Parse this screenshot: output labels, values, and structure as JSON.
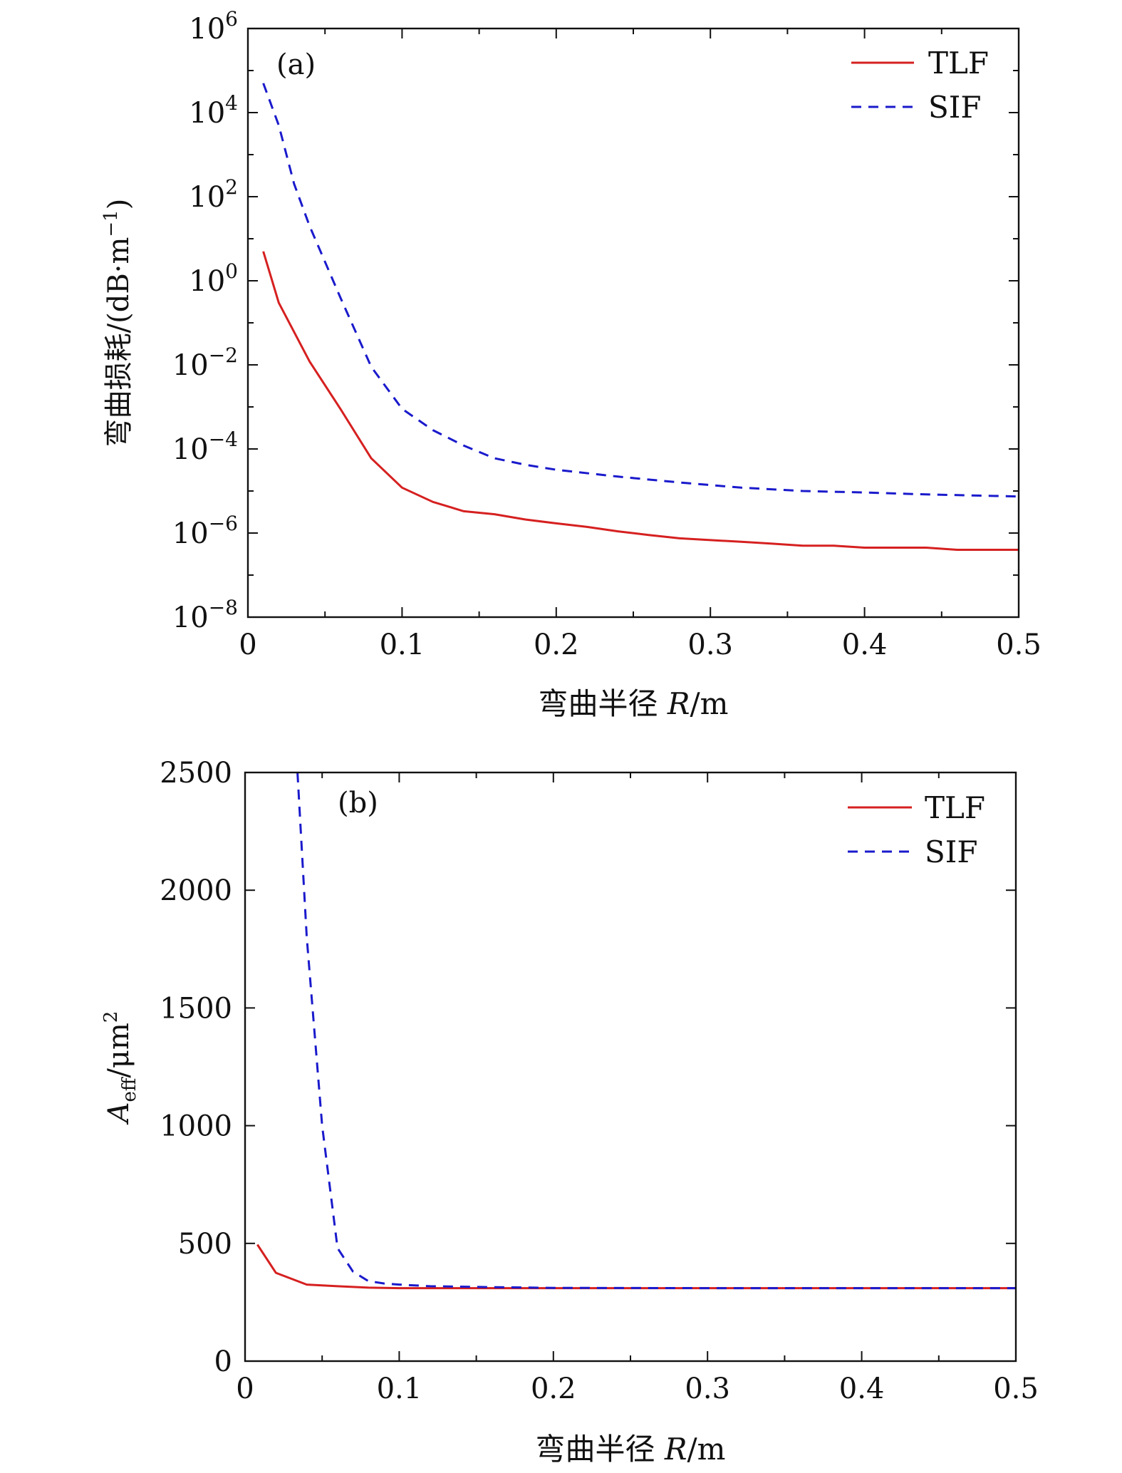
{
  "chart_data": [
    {
      "type": "line",
      "panel_label": "(a)",
      "xlabel": "弯曲半径 R/m",
      "xlabel_parts": [
        "弯曲半径 ",
        "R",
        "/m"
      ],
      "ylabel": "弯曲损耗/(dB·m⁻¹)",
      "ylabel_parts": [
        "弯曲损耗/(dB·m",
        "−1",
        ")"
      ],
      "yscale": "log",
      "xlim": [
        0,
        0.5
      ],
      "ylim": [
        1e-08,
        1000000.0
      ],
      "x_ticks": [
        0,
        0.1,
        0.2,
        0.3,
        0.4,
        0.5
      ],
      "x_tick_labels": [
        "0",
        "0.1",
        "0.2",
        "0.3",
        "0.4",
        "0.5"
      ],
      "y_tick_exponents": [
        -8,
        -6,
        -4,
        -2,
        0,
        2,
        4,
        6
      ],
      "y_tick_base": "10",
      "y_tick_exp_labels": [
        "−8",
        "−6",
        "−4",
        "−2",
        "0",
        "2",
        "4",
        "6"
      ],
      "legend_position": "top-right",
      "series": [
        {
          "name": "TLF",
          "color": "#d62020",
          "style": "solid",
          "x": [
            0.01,
            0.02,
            0.04,
            0.06,
            0.08,
            0.1,
            0.12,
            0.14,
            0.16,
            0.18,
            0.2,
            0.22,
            0.24,
            0.26,
            0.28,
            0.3,
            0.32,
            0.34,
            0.36,
            0.38,
            0.4,
            0.42,
            0.44,
            0.46,
            0.48,
            0.5
          ],
          "y": [
            5,
            0.3,
            0.012,
            0.0009,
            6e-05,
            1.2e-05,
            5.5e-06,
            3.3e-06,
            2.8e-06,
            2.1e-06,
            1.7e-06,
            1.4e-06,
            1.1e-06,
            9e-07,
            7.5e-07,
            6.8e-07,
            6.2e-07,
            5.6e-07,
            5e-07,
            5e-07,
            4.5e-07,
            4.5e-07,
            4.5e-07,
            4e-07,
            4e-07,
            4e-07
          ]
        },
        {
          "name": "SIF",
          "color": "#1a1acc",
          "style": "dashed",
          "x": [
            0.01,
            0.02,
            0.03,
            0.04,
            0.06,
            0.08,
            0.1,
            0.12,
            0.14,
            0.16,
            0.18,
            0.2,
            0.24,
            0.28,
            0.32,
            0.36,
            0.4,
            0.44,
            0.48,
            0.5
          ],
          "y": [
            50000,
            5000,
            200,
            20,
            0.4,
            0.009,
            0.0009,
            0.00028,
            0.00012,
            6e-05,
            4.2e-05,
            3.2e-05,
            2.2e-05,
            1.6e-05,
            1.2e-05,
            1e-05,
            9.2e-06,
            8.3e-06,
            7.7e-06,
            7.4e-06
          ]
        }
      ]
    },
    {
      "type": "line",
      "panel_label": "(b)",
      "xlabel": "弯曲半径 R/m",
      "xlabel_parts": [
        "弯曲半径 ",
        "R",
        "/m"
      ],
      "ylabel": "A_eff/μm²",
      "ylabel_parts": [
        "A",
        "eff",
        "/μm",
        "2"
      ],
      "yscale": "linear",
      "xlim": [
        0,
        0.5
      ],
      "ylim": [
        0,
        2500
      ],
      "x_ticks": [
        0,
        0.1,
        0.2,
        0.3,
        0.4,
        0.5
      ],
      "x_tick_labels": [
        "0",
        "0.1",
        "0.2",
        "0.3",
        "0.4",
        "0.5"
      ],
      "y_ticks": [
        0,
        500,
        1000,
        1500,
        2000,
        2500
      ],
      "y_tick_labels": [
        "0",
        "500",
        "1000",
        "1500",
        "2000",
        "2500"
      ],
      "legend_position": "top-right",
      "series": [
        {
          "name": "TLF",
          "color": "#d62020",
          "style": "solid",
          "x": [
            0.008,
            0.02,
            0.04,
            0.06,
            0.08,
            0.1,
            0.15,
            0.2,
            0.3,
            0.4,
            0.5
          ],
          "y": [
            495,
            375,
            325,
            318,
            312,
            310,
            310,
            310,
            310,
            310,
            310
          ]
        },
        {
          "name": "SIF",
          "color": "#1a1acc",
          "style": "dashed",
          "x": [
            0.034,
            0.04,
            0.05,
            0.06,
            0.07,
            0.08,
            0.09,
            0.1,
            0.12,
            0.15,
            0.2,
            0.3,
            0.4,
            0.5
          ],
          "y": [
            2500,
            1800,
            1000,
            480,
            380,
            340,
            330,
            325,
            318,
            315,
            311,
            310,
            310,
            310
          ]
        }
      ]
    }
  ]
}
